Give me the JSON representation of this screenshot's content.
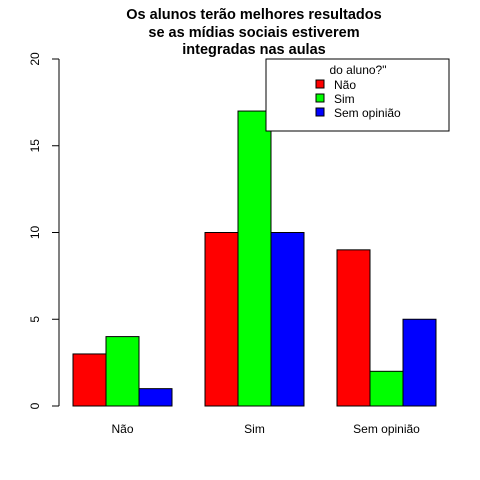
{
  "chart_data": {
    "type": "bar",
    "title_lines": [
      "Os alunos terão melhores resultados",
      "se as mídias sociais estiverem",
      "integradas nas aulas"
    ],
    "categories": [
      "Não",
      "Sim",
      "Sem opinião"
    ],
    "series": [
      {
        "name": "Não",
        "color": "#ff0000",
        "values": [
          3,
          10,
          9
        ]
      },
      {
        "name": "Sim",
        "color": "#00ff00",
        "values": [
          4,
          17,
          2
        ]
      },
      {
        "name": "Sem opinião",
        "color": "#0000ff",
        "values": [
          1,
          10,
          5
        ]
      }
    ],
    "ylim": [
      0,
      20
    ],
    "yticks": [
      0,
      5,
      10,
      15,
      20
    ],
    "legend_title": "do aluno?\"",
    "legend_position": "top-right",
    "grid": false
  }
}
